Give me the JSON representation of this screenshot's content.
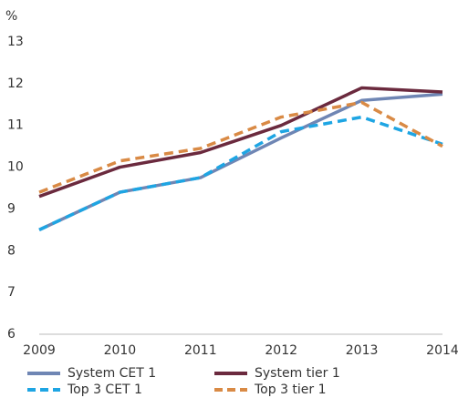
{
  "chart_data": {
    "type": "line",
    "y_label": "%",
    "categories": [
      "2009",
      "2010",
      "2011",
      "2012",
      "2013",
      "2014"
    ],
    "series": [
      {
        "name": "System CET 1",
        "color": "#6f86b4",
        "dash": false,
        "values": [
          8.5,
          9.4,
          9.75,
          10.7,
          11.6,
          11.75
        ]
      },
      {
        "name": "System tier 1",
        "color": "#6b2a3e",
        "dash": false,
        "values": [
          9.3,
          10.0,
          10.35,
          11.0,
          11.9,
          11.8
        ]
      },
      {
        "name": "Top 3 CET 1",
        "color": "#1ea5e3",
        "dash": true,
        "values": [
          8.5,
          9.4,
          9.75,
          10.85,
          11.2,
          10.55
        ]
      },
      {
        "name": "Top 3 tier 1",
        "color": "#d98a45",
        "dash": true,
        "values": [
          9.4,
          10.15,
          10.45,
          11.2,
          11.55,
          10.5
        ]
      }
    ],
    "ylim": [
      6,
      13
    ],
    "yticks": [
      6,
      7,
      8,
      9,
      10,
      11,
      12,
      13
    ],
    "grid": false
  }
}
